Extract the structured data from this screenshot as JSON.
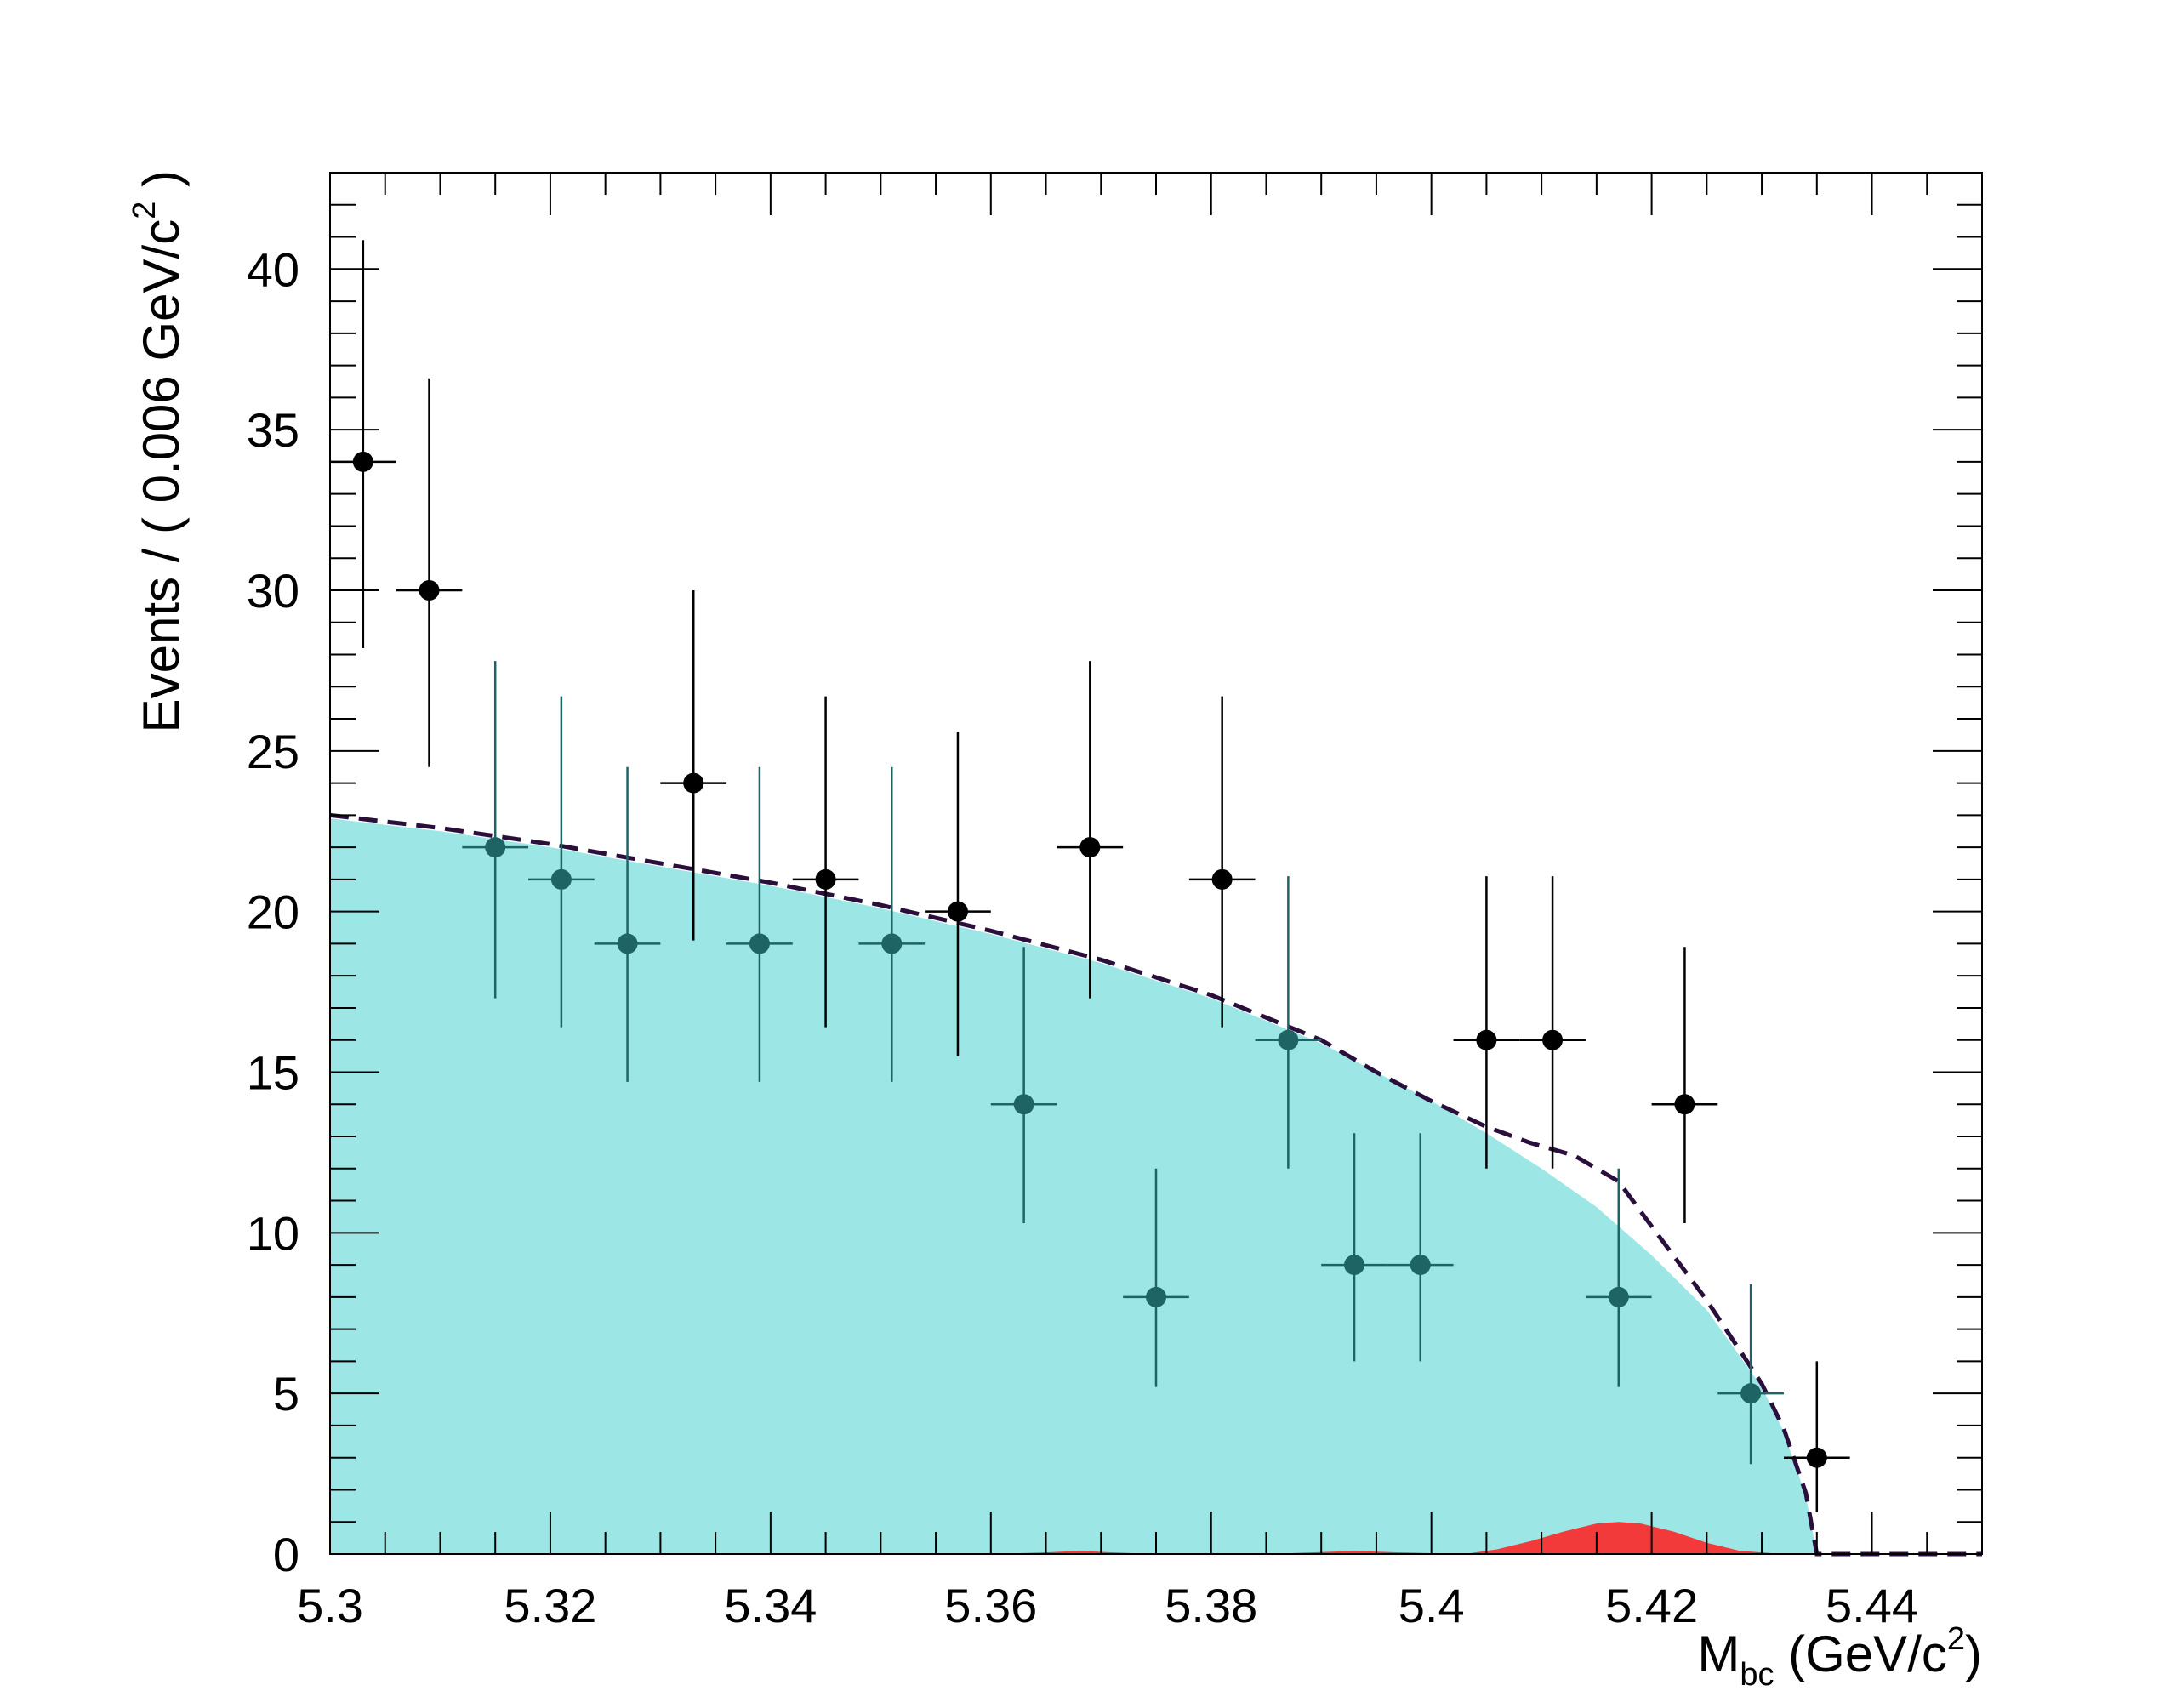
{
  "chart_data": {
    "type": "scatter",
    "xlim": [
      5.3,
      5.45
    ],
    "ylim": [
      0,
      43
    ],
    "grid": false,
    "legend": "none",
    "x_ticks": [
      "5.3",
      "5.32",
      "5.34",
      "5.36",
      "5.38",
      "5.4",
      "5.42",
      "5.44"
    ],
    "x_tick_values": [
      5.3,
      5.32,
      5.34,
      5.36,
      5.38,
      5.4,
      5.42,
      5.44
    ],
    "y_ticks": [
      "0",
      "5",
      "10",
      "15",
      "20",
      "25",
      "30",
      "35",
      "40"
    ],
    "y_tick_values": [
      0,
      5,
      10,
      15,
      20,
      25,
      30,
      35,
      40
    ],
    "xlabel": {
      "main": "M",
      "sub": "bc",
      "unit": " (GeV/c",
      "sup": "2",
      "close": ")"
    },
    "ylabel": {
      "main": "Events / ( 0.006 GeV/c",
      "sup": "2",
      "close": " )"
    },
    "bin_half_width": 0.003,
    "series": [
      {
        "kind": "points",
        "color": "#000000",
        "x": [
          5.303,
          5.309,
          5.333,
          5.345,
          5.357,
          5.369,
          5.381,
          5.405,
          5.411,
          5.423,
          5.435
        ],
        "y": [
          34,
          30,
          24,
          21,
          20,
          22,
          21,
          16,
          16,
          14,
          3
        ],
        "err_low": [
          5.8,
          5.5,
          4.9,
          4.6,
          4.5,
          4.7,
          4.6,
          4.0,
          4.0,
          3.7,
          1.7
        ],
        "err_high": [
          6.9,
          6.6,
          6.0,
          5.7,
          5.6,
          5.8,
          5.7,
          5.1,
          5.1,
          4.9,
          3.0
        ]
      },
      {
        "kind": "points",
        "color": "#1f6464",
        "x": [
          5.315,
          5.321,
          5.327,
          5.339,
          5.351,
          5.363,
          5.375,
          5.387,
          5.393,
          5.399,
          5.417,
          5.429
        ],
        "y": [
          22,
          21,
          19,
          19,
          19,
          14,
          8,
          16,
          9,
          9,
          8,
          5
        ],
        "err_low": [
          4.7,
          4.6,
          4.3,
          4.3,
          4.3,
          3.7,
          2.8,
          4.0,
          3.0,
          3.0,
          2.8,
          2.2
        ],
        "err_high": [
          5.8,
          5.7,
          5.5,
          5.5,
          5.5,
          4.9,
          4.0,
          5.1,
          4.1,
          4.1,
          4.0,
          3.4
        ]
      },
      {
        "kind": "area",
        "color": "#9ce6e6",
        "x": [
          5.3,
          5.31,
          5.32,
          5.33,
          5.34,
          5.35,
          5.36,
          5.37,
          5.38,
          5.39,
          5.395,
          5.4,
          5.405,
          5.41,
          5.415,
          5.42,
          5.425,
          5.43,
          5.432,
          5.434,
          5.435
        ],
        "y": [
          22.9,
          22.5,
          22.0,
          21.4,
          20.8,
          20.1,
          19.3,
          18.4,
          17.3,
          15.9,
          15.0,
          14.1,
          13.1,
          12.0,
          10.8,
          9.3,
          7.6,
          5.2,
          3.8,
          1.8,
          0
        ]
      },
      {
        "kind": "area",
        "color": "#f23a3a",
        "x": [
          5.36,
          5.365,
          5.368,
          5.371,
          5.375,
          5.385,
          5.39,
          5.393,
          5.397,
          5.403,
          5.406,
          5.409,
          5.412,
          5.415,
          5.417,
          5.419,
          5.422,
          5.425,
          5.428,
          5.432
        ],
        "y": [
          0,
          0.05,
          0.1,
          0.05,
          0,
          0,
          0.06,
          0.1,
          0.05,
          0,
          0.15,
          0.4,
          0.7,
          0.95,
          1.0,
          0.95,
          0.7,
          0.35,
          0.1,
          0
        ]
      },
      {
        "kind": "dashed-line",
        "color": "#2a0f3c",
        "x": [
          5.3,
          5.31,
          5.32,
          5.33,
          5.34,
          5.35,
          5.36,
          5.37,
          5.38,
          5.39,
          5.395,
          5.4,
          5.405,
          5.409,
          5.413,
          5.417,
          5.42,
          5.425,
          5.43,
          5.432,
          5.434,
          5.435,
          5.45
        ],
        "y": [
          23.0,
          22.6,
          22.1,
          21.5,
          20.9,
          20.2,
          19.4,
          18.5,
          17.4,
          16.0,
          15.0,
          14.1,
          13.3,
          12.8,
          12.4,
          11.6,
          10.2,
          7.9,
          5.3,
          3.9,
          1.9,
          0,
          0
        ]
      }
    ]
  }
}
